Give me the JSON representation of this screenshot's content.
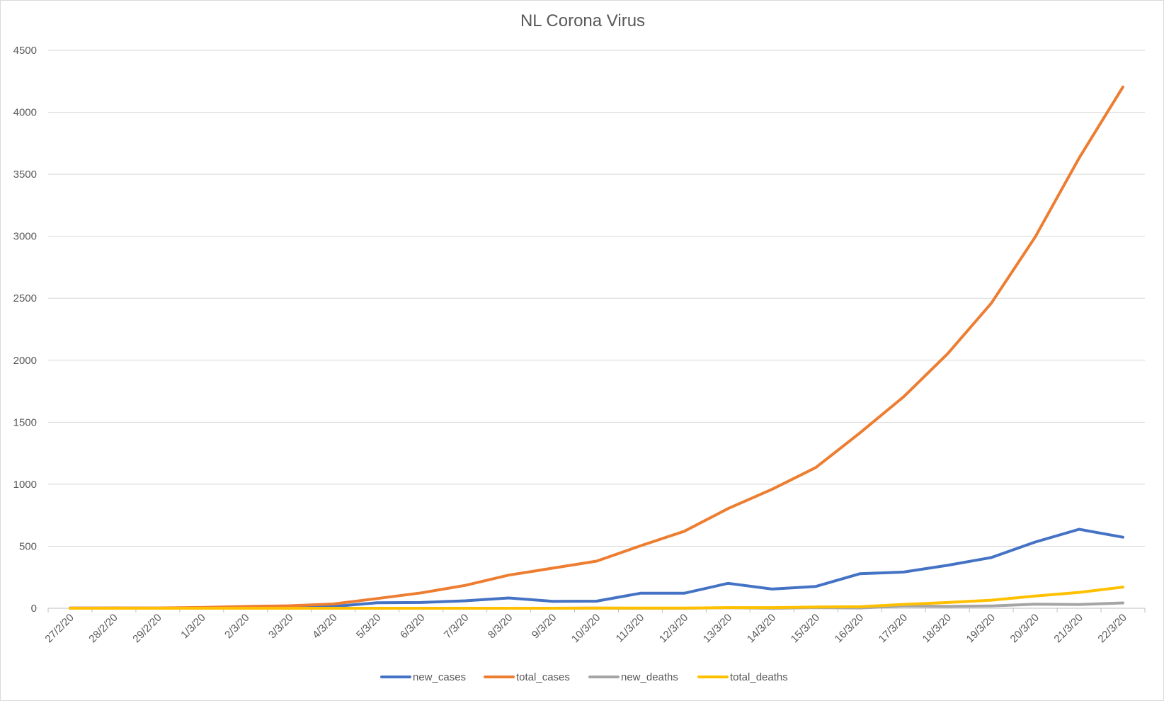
{
  "chart_data": {
    "type": "line",
    "title": "NL Corona Virus",
    "xlabel": "",
    "ylabel": "",
    "ylim": [
      0,
      4500
    ],
    "y_ticks": [
      0,
      500,
      1000,
      1500,
      2000,
      2500,
      3000,
      3500,
      4000,
      4500
    ],
    "y_tick_labels": [
      "0",
      "500",
      "1000",
      "1500",
      "2000",
      "2500",
      "3000",
      "3500",
      "4000",
      "4500"
    ],
    "grid": true,
    "legend_position": "bottom",
    "categories": [
      "27/2/20",
      "28/2/20",
      "29/2/20",
      "1/3/20",
      "2/3/20",
      "3/3/20",
      "4/3/20",
      "5/3/20",
      "6/3/20",
      "7/3/20",
      "8/3/20",
      "9/3/20",
      "10/3/20",
      "11/3/20",
      "12/3/20",
      "13/3/20",
      "14/3/20",
      "15/3/20",
      "16/3/20",
      "17/3/20",
      "18/3/20",
      "19/3/20",
      "20/3/20",
      "21/3/20",
      "22/3/20"
    ],
    "series": [
      {
        "name": "new_cases",
        "color": "#4472C4",
        "values": [
          1,
          1,
          0,
          4,
          8,
          6,
          14,
          44,
          46,
          60,
          83,
          56,
          57,
          121,
          121,
          201,
          155,
          176,
          278,
          292,
          346,
          409,
          534,
          637,
          573
        ]
      },
      {
        "name": "total_cases",
        "color": "#ED7D31",
        "values": [
          1,
          2,
          2,
          6,
          14,
          20,
          34,
          78,
          124,
          184,
          267,
          323,
          380,
          503,
          621,
          804,
          959,
          1135,
          1413,
          1705,
          2051,
          2460,
          2994,
          3631,
          4204
        ]
      },
      {
        "name": "new_deaths",
        "color": "#A5A5A5",
        "values": [
          0,
          0,
          0,
          0,
          0,
          0,
          0,
          0,
          0,
          0,
          0,
          0,
          1,
          0,
          0,
          4,
          0,
          5,
          2,
          19,
          15,
          19,
          33,
          30,
          43
        ]
      },
      {
        "name": "total_deaths",
        "color": "#FFC000",
        "values": [
          0,
          0,
          0,
          0,
          0,
          0,
          0,
          0,
          0,
          0,
          0,
          0,
          1,
          1,
          1,
          5,
          5,
          10,
          12,
          31,
          46,
          65,
          98,
          128,
          171
        ]
      }
    ]
  }
}
